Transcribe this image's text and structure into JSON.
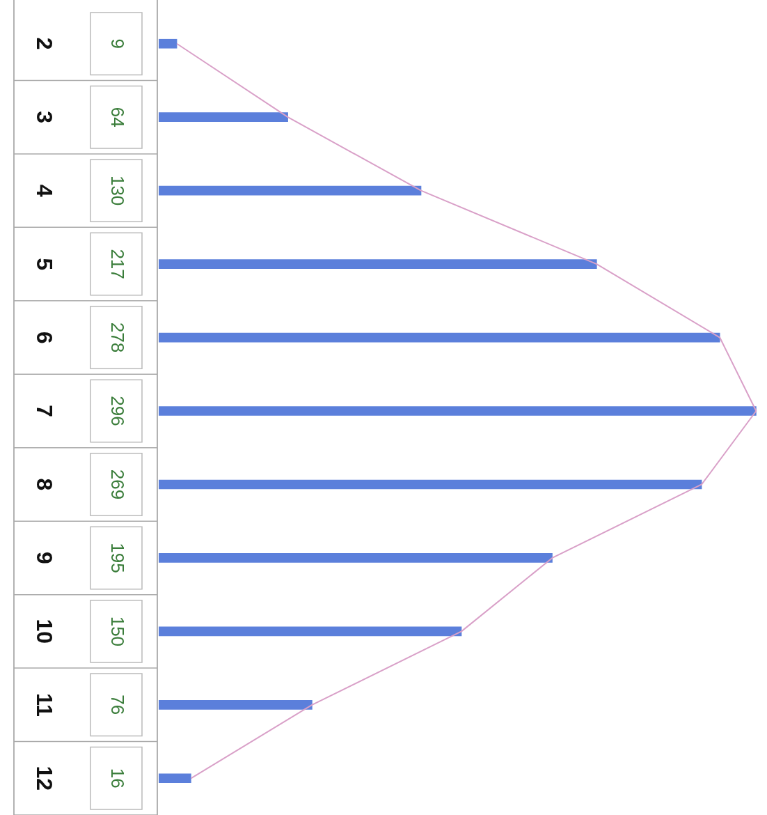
{
  "chart_data": {
    "type": "bar",
    "orientation": "horizontal",
    "categories": [
      "2",
      "3",
      "4",
      "5",
      "6",
      "7",
      "8",
      "9",
      "10",
      "11",
      "12"
    ],
    "series": [
      {
        "color": "#5b7fdb",
        "values": [
          9,
          64,
          130,
          217,
          278,
          296,
          269,
          195,
          150,
          76,
          16
        ],
        "value_labels": [
          "9",
          "64",
          "130",
          "217",
          "278",
          "296",
          "269",
          "195",
          "150",
          "76",
          "16"
        ]
      },
      {
        "type": "line",
        "color": "#d9a0c8",
        "values": [
          9,
          64,
          130,
          217,
          278,
          296,
          269,
          195,
          150,
          76,
          16
        ]
      }
    ],
    "marker": "none",
    "legend": false
  }
}
